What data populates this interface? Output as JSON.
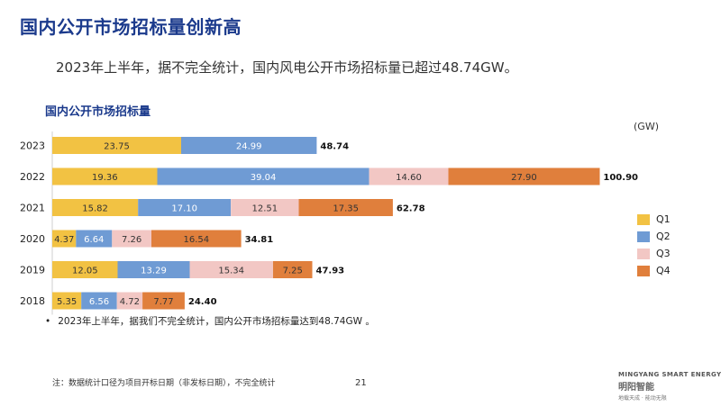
{
  "slide": {
    "title": "国内公开市场招标量创新高",
    "subtitle": "2023年上半年，据不完全统计，国内风电公开市场招标量已超过48.74GW。",
    "note": "2023年上半年，据我们不完全统计，国内公开市场招标量达到48.74GW 。",
    "bullet": "•",
    "footnote": "注：数据统计口径为项目开标日期（非发标日期），不完全统计",
    "page_number": "21",
    "logo": {
      "english": "MINGYANG SMART ENERGY",
      "chinese": "明阳智能",
      "slogan": "地载天成 · 能动无限"
    }
  },
  "chart_data": {
    "type": "bar",
    "orientation": "horizontal",
    "stacked": true,
    "title": "国内公开市场招标量",
    "unit": "(GW)",
    "categories": [
      "2023",
      "2022",
      "2021",
      "2020",
      "2019",
      "2018"
    ],
    "series": [
      {
        "name": "Q1",
        "color": "#f2c243",
        "label_color": "#333333",
        "values": [
          23.75,
          19.36,
          15.82,
          4.37,
          12.05,
          5.35
        ]
      },
      {
        "name": "Q2",
        "color": "#6f9bd4",
        "label_color": "#ffffff",
        "values": [
          24.99,
          39.04,
          17.1,
          6.64,
          13.29,
          6.56
        ]
      },
      {
        "name": "Q3",
        "color": "#f2c7c4",
        "label_color": "#333333",
        "values": [
          null,
          14.6,
          12.51,
          7.26,
          15.34,
          4.72
        ]
      },
      {
        "name": "Q4",
        "color": "#e07f3c",
        "label_color": "#333333",
        "values": [
          null,
          27.9,
          17.35,
          16.54,
          7.25,
          7.77
        ]
      }
    ],
    "totals": [
      "48.74",
      "100.90",
      "62.78",
      "34.81",
      "47.93",
      "24.40"
    ],
    "legend": "right",
    "grid": false
  }
}
